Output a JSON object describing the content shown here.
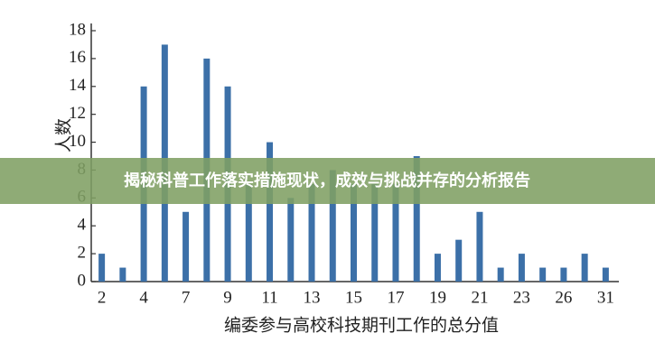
{
  "chart_data": {
    "type": "bar",
    "y_label": "人数",
    "x_label": "编委参与高校科技期刊工作的总分值",
    "categories": [
      "2",
      null,
      "4",
      null,
      "7",
      null,
      "9",
      null,
      "11",
      null,
      "13",
      null,
      "15",
      null,
      "17",
      null,
      "19",
      null,
      "21",
      null,
      "23",
      null,
      "26",
      null,
      "31"
    ],
    "values": [
      2,
      1,
      14,
      17,
      5,
      16,
      14,
      7,
      10,
      6,
      7,
      8,
      7,
      7,
      7,
      9,
      2,
      3,
      5,
      1,
      2,
      1,
      1,
      2,
      1
    ],
    "color": "#3c70a8",
    "ylim": [
      0,
      18
    ],
    "yticks": [
      0,
      2,
      4,
      6,
      8,
      10,
      12,
      14,
      16,
      18
    ],
    "grid": false
  },
  "banner": {
    "title": "揭秘科普工作落实措施现状，成效与挑战并存的分析报告"
  }
}
